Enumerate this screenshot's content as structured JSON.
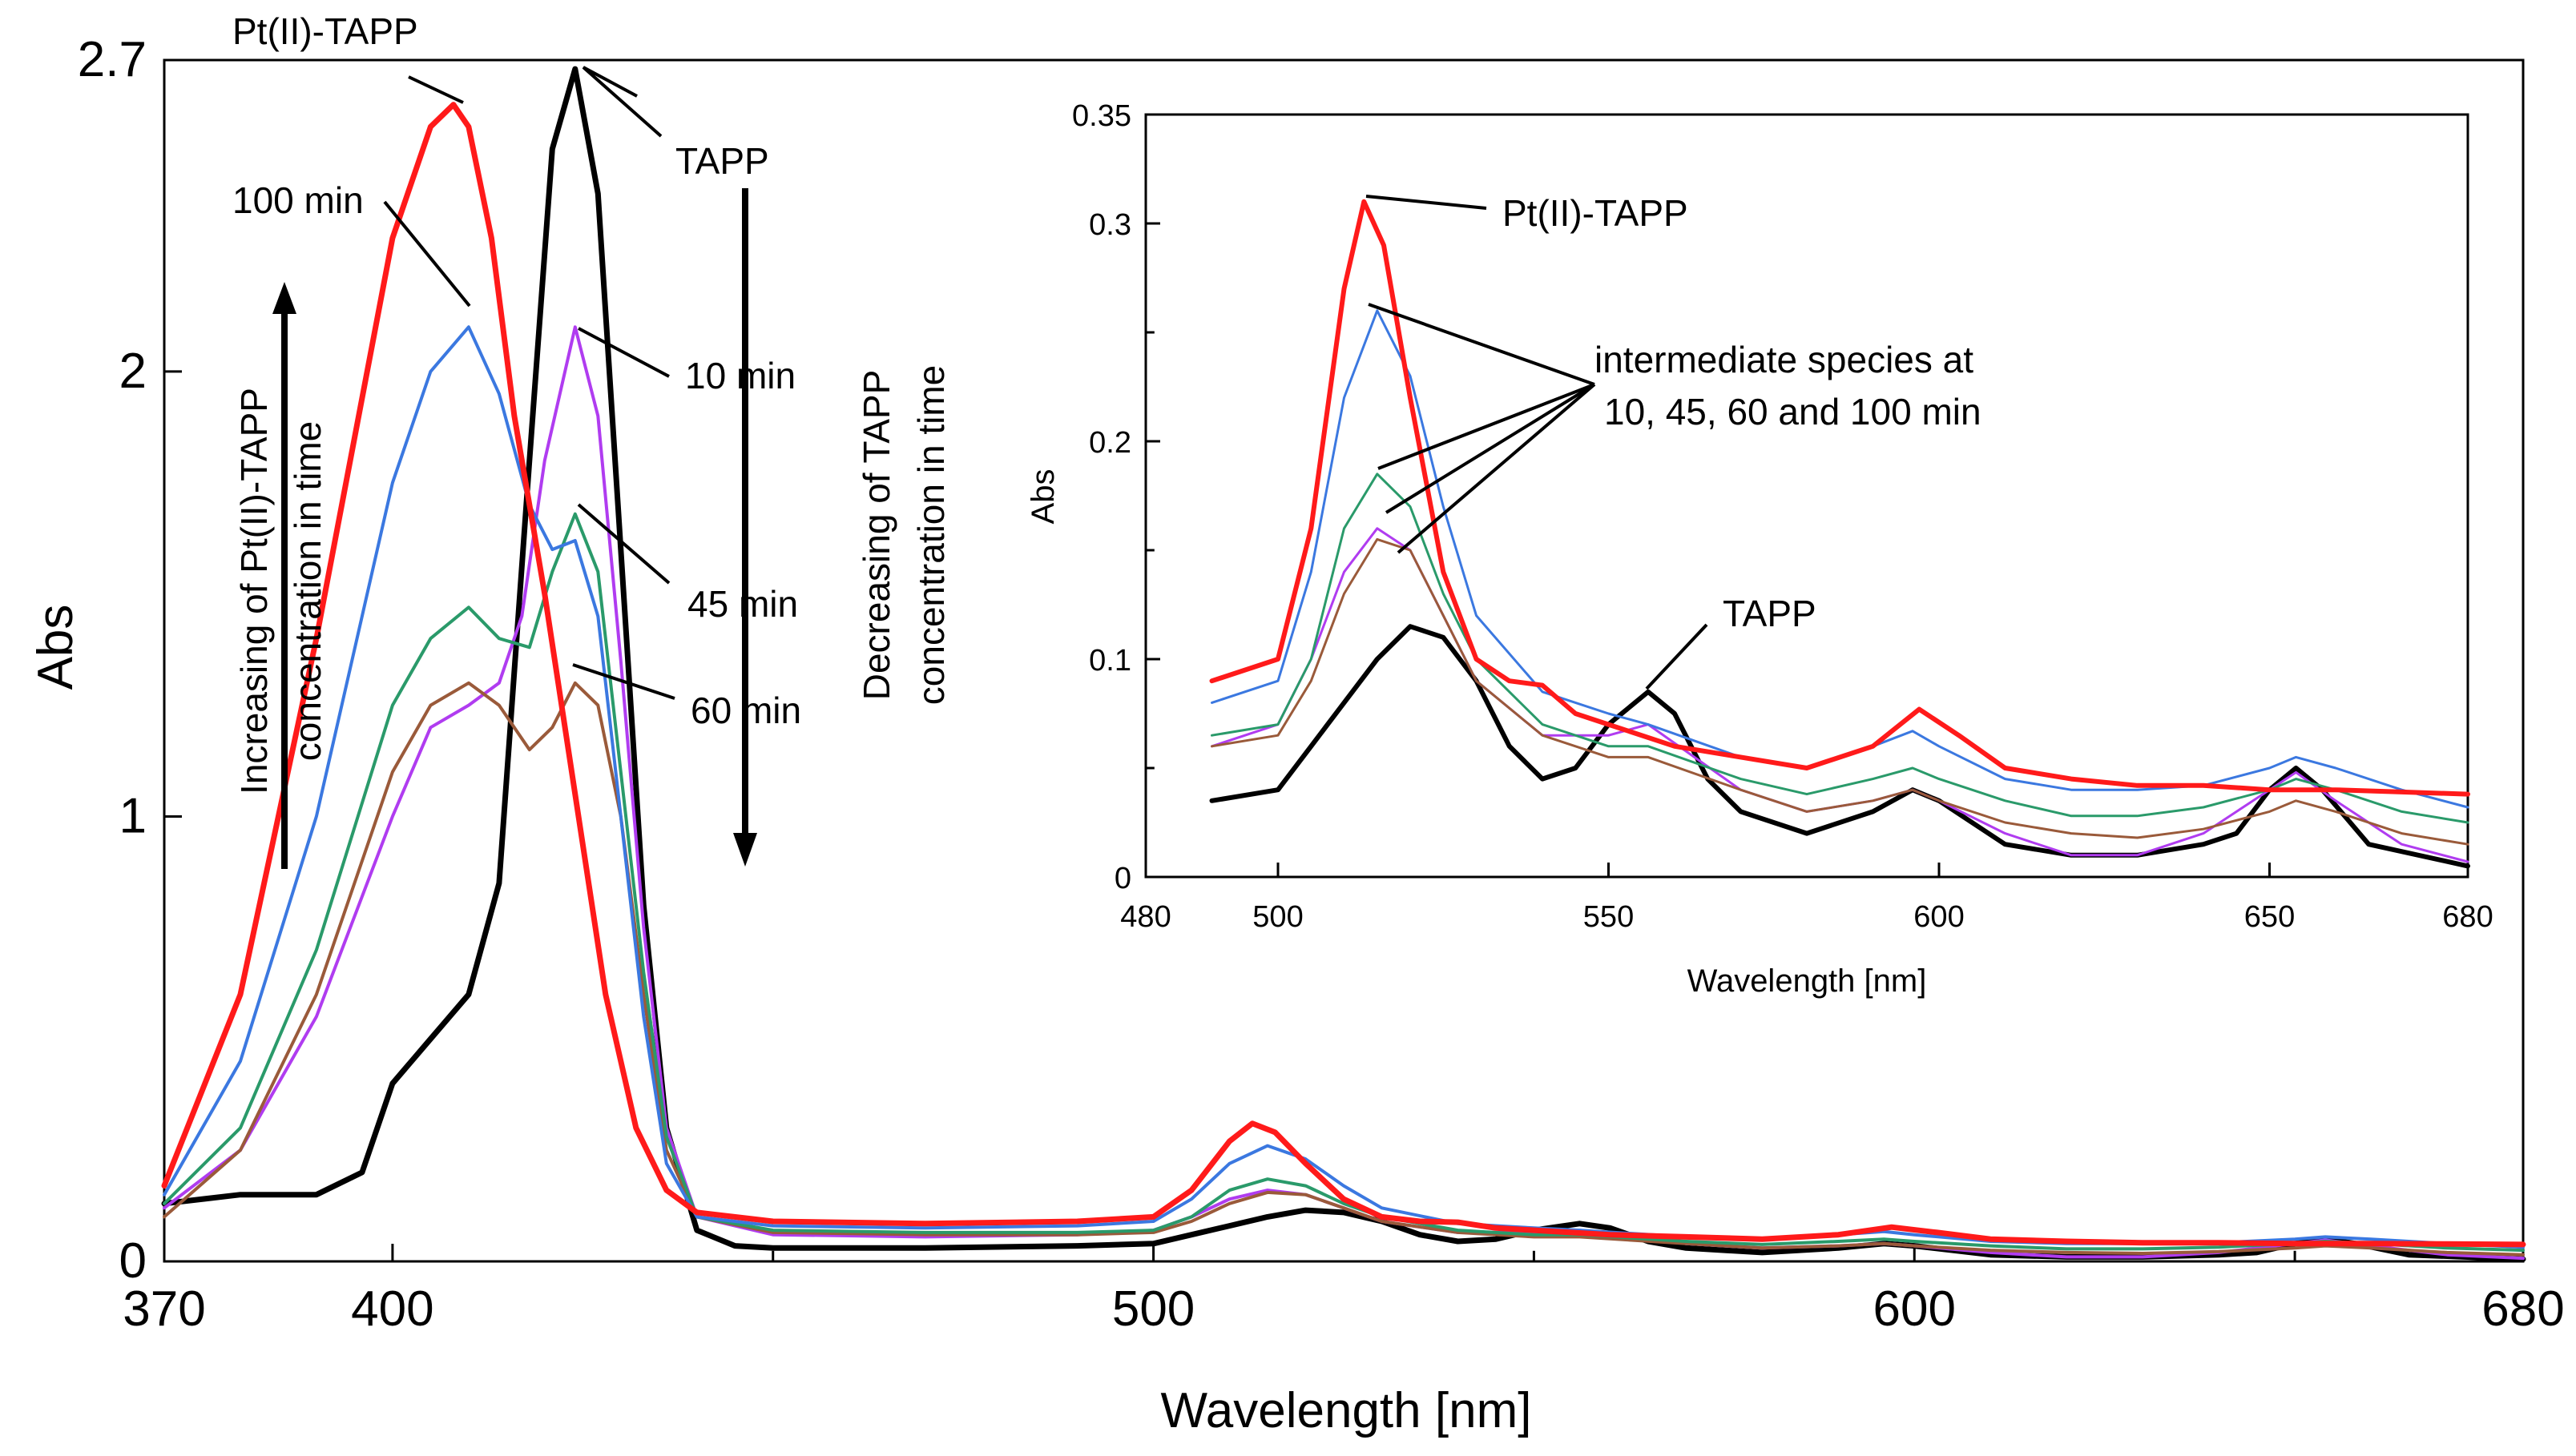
{
  "chart_data": [
    {
      "type": "line",
      "title": "",
      "xlabel": "Wavelength [nm]",
      "ylabel": "Abs",
      "xlim": [
        370,
        680
      ],
      "ylim": [
        0,
        2.7
      ],
      "x_ticks": [
        370,
        400,
        500,
        600,
        680
      ],
      "y_ticks": [
        0,
        1,
        2,
        2.7
      ],
      "x_tick_labels": [
        "370",
        "400",
        "500",
        "600",
        "680"
      ],
      "y_tick_labels": [
        "0",
        "1",
        "2",
        "2.7"
      ],
      "series": [
        {
          "name": "TAPP",
          "color": "#000000",
          "width": 7,
          "x": [
            370,
            380,
            390,
            396,
            400,
            405,
            410,
            414,
            418,
            421,
            424,
            427,
            430,
            433,
            436,
            440,
            445,
            450,
            470,
            490,
            500,
            505,
            510,
            515,
            520,
            525,
            530,
            535,
            540,
            545,
            550,
            556,
            560,
            565,
            570,
            580,
            590,
            596,
            600,
            610,
            620,
            630,
            640,
            645,
            650,
            654,
            658,
            665,
            680
          ],
          "y": [
            0.13,
            0.15,
            0.15,
            0.2,
            0.4,
            0.5,
            0.6,
            0.85,
            1.8,
            2.5,
            2.68,
            2.4,
            1.6,
            0.8,
            0.3,
            0.07,
            0.035,
            0.03,
            0.03,
            0.035,
            0.04,
            0.06,
            0.08,
            0.1,
            0.115,
            0.11,
            0.09,
            0.06,
            0.045,
            0.05,
            0.07,
            0.085,
            0.075,
            0.045,
            0.03,
            0.02,
            0.03,
            0.04,
            0.035,
            0.015,
            0.01,
            0.01,
            0.015,
            0.02,
            0.04,
            0.05,
            0.04,
            0.015,
            0.005
          ]
        },
        {
          "name": "10 min",
          "color": "#b03cf0",
          "width": 4,
          "x": [
            370,
            380,
            390,
            400,
            405,
            410,
            414,
            417,
            420,
            424,
            427,
            430,
            433,
            436,
            440,
            450,
            470,
            490,
            500,
            505,
            510,
            515,
            520,
            525,
            530,
            540,
            550,
            556,
            570,
            580,
            590,
            596,
            600,
            610,
            620,
            630,
            640,
            650,
            654,
            660,
            670,
            680
          ],
          "y": [
            0.12,
            0.25,
            0.55,
            1.0,
            1.2,
            1.25,
            1.3,
            1.45,
            1.8,
            2.1,
            1.9,
            1.35,
            0.75,
            0.3,
            0.1,
            0.06,
            0.055,
            0.06,
            0.07,
            0.1,
            0.14,
            0.16,
            0.15,
            0.12,
            0.09,
            0.065,
            0.065,
            0.07,
            0.04,
            0.03,
            0.035,
            0.04,
            0.035,
            0.02,
            0.01,
            0.01,
            0.02,
            0.04,
            0.048,
            0.035,
            0.015,
            0.007
          ]
        },
        {
          "name": "60 min",
          "color": "#9a5a3a",
          "width": 4,
          "x": [
            370,
            380,
            390,
            400,
            405,
            410,
            414,
            418,
            421,
            424,
            427,
            430,
            433,
            436,
            440,
            450,
            470,
            490,
            500,
            505,
            510,
            515,
            520,
            525,
            530,
            540,
            550,
            556,
            570,
            580,
            590,
            596,
            600,
            610,
            620,
            630,
            640,
            650,
            654,
            660,
            670,
            680
          ],
          "y": [
            0.1,
            0.25,
            0.6,
            1.1,
            1.25,
            1.3,
            1.25,
            1.15,
            1.2,
            1.3,
            1.25,
            1.0,
            0.6,
            0.25,
            0.1,
            0.065,
            0.06,
            0.06,
            0.065,
            0.09,
            0.13,
            0.155,
            0.15,
            0.12,
            0.09,
            0.065,
            0.055,
            0.055,
            0.04,
            0.03,
            0.035,
            0.04,
            0.035,
            0.025,
            0.02,
            0.018,
            0.022,
            0.03,
            0.035,
            0.03,
            0.02,
            0.015
          ]
        },
        {
          "name": "45 min",
          "color": "#2a9a6a",
          "width": 4,
          "x": [
            370,
            380,
            390,
            400,
            405,
            410,
            414,
            418,
            421,
            424,
            427,
            430,
            433,
            436,
            440,
            450,
            470,
            490,
            500,
            505,
            510,
            515,
            520,
            525,
            530,
            540,
            550,
            556,
            570,
            580,
            590,
            596,
            600,
            610,
            620,
            630,
            640,
            650,
            654,
            660,
            670,
            680
          ],
          "y": [
            0.13,
            0.3,
            0.7,
            1.25,
            1.4,
            1.47,
            1.4,
            1.38,
            1.55,
            1.68,
            1.55,
            1.1,
            0.65,
            0.28,
            0.1,
            0.07,
            0.065,
            0.065,
            0.07,
            0.1,
            0.16,
            0.185,
            0.17,
            0.13,
            0.1,
            0.07,
            0.06,
            0.06,
            0.045,
            0.038,
            0.045,
            0.05,
            0.045,
            0.035,
            0.028,
            0.028,
            0.032,
            0.04,
            0.045,
            0.04,
            0.03,
            0.025
          ]
        },
        {
          "name": "100 min",
          "color": "#3b78e0",
          "width": 4,
          "x": [
            370,
            380,
            390,
            400,
            405,
            410,
            414,
            418,
            421,
            424,
            427,
            430,
            433,
            436,
            440,
            450,
            470,
            490,
            500,
            505,
            510,
            515,
            520,
            525,
            530,
            540,
            550,
            556,
            570,
            580,
            590,
            596,
            600,
            610,
            620,
            630,
            640,
            650,
            654,
            660,
            670,
            680
          ],
          "y": [
            0.15,
            0.45,
            1.0,
            1.75,
            2.0,
            2.1,
            1.95,
            1.7,
            1.6,
            1.62,
            1.45,
            1.0,
            0.55,
            0.22,
            0.1,
            0.08,
            0.075,
            0.08,
            0.09,
            0.14,
            0.22,
            0.26,
            0.23,
            0.17,
            0.12,
            0.085,
            0.075,
            0.07,
            0.055,
            0.05,
            0.06,
            0.067,
            0.06,
            0.045,
            0.04,
            0.04,
            0.042,
            0.05,
            0.055,
            0.05,
            0.04,
            0.032
          ]
        },
        {
          "name": "Pt(II)-TAPP",
          "color": "#ff1a1a",
          "width": 7,
          "x": [
            370,
            380,
            390,
            400,
            405,
            408,
            410,
            413,
            416,
            420,
            424,
            428,
            432,
            436,
            440,
            450,
            470,
            490,
            500,
            505,
            510,
            513,
            516,
            520,
            525,
            530,
            535,
            540,
            545,
            550,
            560,
            570,
            580,
            590,
            597,
            603,
            610,
            620,
            630,
            640,
            650,
            654,
            660,
            670,
            680
          ],
          "y": [
            0.17,
            0.6,
            1.4,
            2.3,
            2.55,
            2.6,
            2.55,
            2.3,
            1.9,
            1.5,
            1.05,
            0.6,
            0.3,
            0.16,
            0.11,
            0.09,
            0.085,
            0.09,
            0.1,
            0.16,
            0.27,
            0.31,
            0.29,
            0.22,
            0.14,
            0.1,
            0.09,
            0.088,
            0.075,
            0.07,
            0.06,
            0.055,
            0.05,
            0.06,
            0.077,
            0.065,
            0.05,
            0.045,
            0.042,
            0.042,
            0.04,
            0.04,
            0.04,
            0.039,
            0.038
          ]
        }
      ],
      "annotations": {
        "pt_tapp": "Pt(II)-TAPP",
        "tapp": "TAPP",
        "t100": "100 min",
        "t10": "10 min",
        "t45": "45 min",
        "t60": "60 min",
        "increase_line1": "Increasing of Pt(II)-TAPP",
        "increase_line2": "concentration in time",
        "decrease_line1": "Decreasing of TAPP",
        "decrease_line2": "concentration in time"
      }
    },
    {
      "type": "line",
      "title": "",
      "xlabel": "Wavelength [nm]",
      "ylabel": "Abs",
      "xlim": [
        480,
        680
      ],
      "ylim": [
        0,
        0.35
      ],
      "x_ticks": [
        480,
        500,
        550,
        600,
        650,
        680
      ],
      "y_ticks": [
        0,
        0.1,
        0.2,
        0.3,
        0.35
      ],
      "x_tick_labels": [
        "480",
        "500",
        "550",
        "600",
        "650",
        "680"
      ],
      "y_tick_labels": [
        "0",
        "0.1",
        "0.2",
        "0.3",
        "0.35"
      ],
      "series_note": "Inset zoom of the main chart's series over 480-680 nm",
      "annotations": {
        "pt_tapp": "Pt(II)-TAPP",
        "intermediate_line1": "intermediate species at",
        "intermediate_line2": "10, 45, 60 and 100 min",
        "tapp": "TAPP"
      }
    }
  ]
}
